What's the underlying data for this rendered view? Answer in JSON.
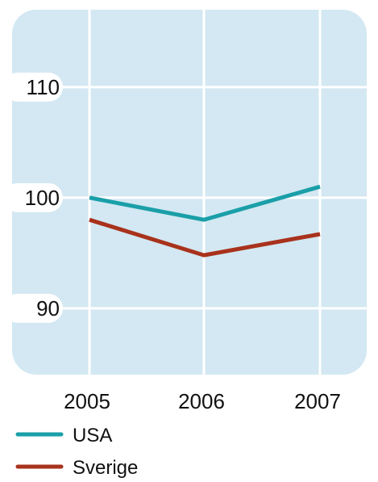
{
  "chart_data": {
    "type": "line",
    "title": "",
    "xlabel": "",
    "ylabel": "",
    "categories": [
      "2005",
      "2006",
      "2007"
    ],
    "ylim": [
      84,
      117
    ],
    "yticks": [
      90,
      100,
      110
    ],
    "grid": true,
    "legend_position": "bottom-left",
    "series": [
      {
        "name": "USA",
        "color": "#1a9fa8",
        "values": [
          100,
          98,
          101
        ]
      },
      {
        "name": "Sverige",
        "color": "#a8321c",
        "values": [
          98,
          94.8,
          96.7
        ]
      }
    ],
    "background_color": "#d3e8f2"
  }
}
